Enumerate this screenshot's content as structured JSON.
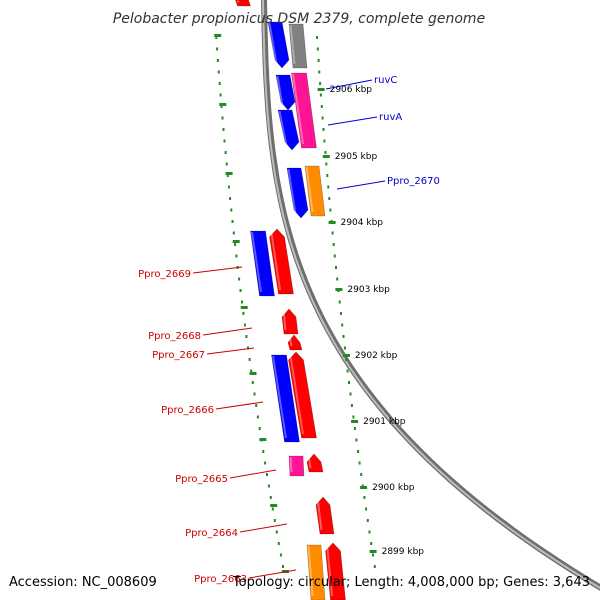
{
  "title": "Pelobacter propionicus DSM 2379, complete genome",
  "footer": {
    "accession": "Accession: NC_008609",
    "summary": "Topology: circular; Length: 4,008,000 bp; Genes: 3,643"
  },
  "colors": {
    "blue": "#0000ff",
    "red": "#ff0000",
    "magenta": "#ff1493",
    "orange": "#ff8c00",
    "grey": "#808080",
    "tick_green": "#228b22",
    "label_blue": "#0000cc",
    "label_red": "#cc0000"
  },
  "ticks": [
    {
      "label": "2906 kbp"
    },
    {
      "label": "2905 kbp"
    },
    {
      "label": "2904 kbp"
    },
    {
      "label": "2903 kbp"
    },
    {
      "label": "2902 kbp"
    },
    {
      "label": "2901 kbp"
    },
    {
      "label": "2900 kbp"
    },
    {
      "label": "2899 kbp"
    }
  ],
  "gene_labels": [
    {
      "text": "ruvC",
      "side": "right",
      "color": "blue"
    },
    {
      "text": "ruvA",
      "side": "right",
      "color": "blue"
    },
    {
      "text": "Ppro_2670",
      "side": "right",
      "color": "blue"
    },
    {
      "text": "Ppro_2669",
      "side": "left",
      "color": "red"
    },
    {
      "text": "Ppro_2668",
      "side": "left",
      "color": "red"
    },
    {
      "text": "Ppro_2667",
      "side": "left",
      "color": "red"
    },
    {
      "text": "Ppro_2666",
      "side": "left",
      "color": "red"
    },
    {
      "text": "Ppro_2665",
      "side": "left",
      "color": "red"
    },
    {
      "text": "Ppro_2664",
      "side": "left",
      "color": "red"
    },
    {
      "text": "Ppro_2663",
      "side": "left",
      "color": "red"
    }
  ]
}
